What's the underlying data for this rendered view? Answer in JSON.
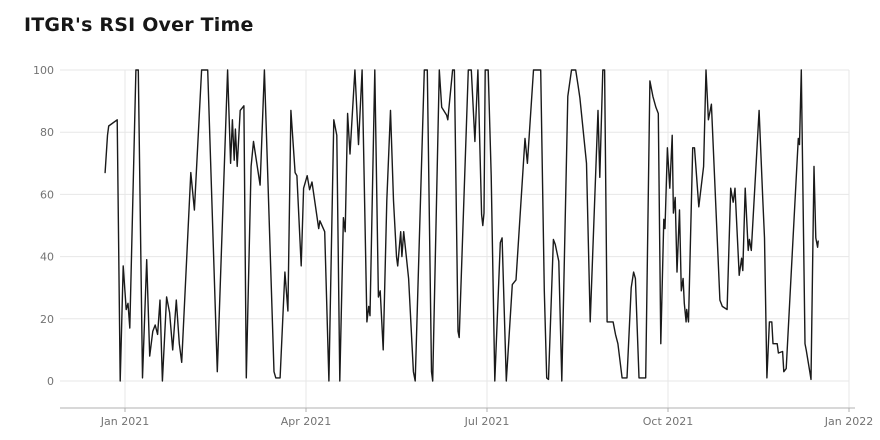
{
  "title": "ITGR's RSI Over Time",
  "chart_data": {
    "type": "line",
    "title": "ITGR's RSI Over Time",
    "series_name": "RSI",
    "x_unit": "months_since_Jan_2021",
    "x_tick_labels": [
      "Jan 2021",
      "Apr 2021",
      "Jul 2021",
      "Oct 2021",
      "Jan 2022"
    ],
    "x_tick_positions_months": [
      0,
      3,
      6,
      9,
      12
    ],
    "y_tick_labels": [
      "0",
      "20",
      "40",
      "60",
      "80",
      "100"
    ],
    "y_ticks": [
      0,
      20,
      40,
      60,
      80,
      100
    ],
    "ylim": [
      0,
      100
    ],
    "xlim_months": [
      -1.08,
      12.05
    ],
    "grid": true,
    "legend": "none",
    "line_color": "#1a1a1a",
    "grid_color": "#e7e7e7",
    "axis_color": "#b0b0b0",
    "label_color": "#737373",
    "points": [
      [
        -0.33,
        67
      ],
      [
        -0.29,
        79
      ],
      [
        -0.27,
        82
      ],
      [
        -0.13,
        84
      ],
      [
        -0.08,
        0
      ],
      [
        -0.03,
        37
      ],
      [
        0.02,
        23
      ],
      [
        0.05,
        25
      ],
      [
        0.08,
        17
      ],
      [
        0.18,
        100
      ],
      [
        0.22,
        100
      ],
      [
        0.29,
        1
      ],
      [
        0.36,
        39
      ],
      [
        0.41,
        8
      ],
      [
        0.46,
        16
      ],
      [
        0.5,
        18
      ],
      [
        0.54,
        15
      ],
      [
        0.58,
        26
      ],
      [
        0.62,
        0
      ],
      [
        0.69,
        27
      ],
      [
        0.74,
        22
      ],
      [
        0.79,
        10
      ],
      [
        0.85,
        26
      ],
      [
        0.9,
        12
      ],
      [
        0.94,
        6
      ],
      [
        1.09,
        67
      ],
      [
        1.15,
        55
      ],
      [
        1.27,
        100
      ],
      [
        1.37,
        100
      ],
      [
        1.53,
        3
      ],
      [
        1.7,
        100
      ],
      [
        1.75,
        70
      ],
      [
        1.78,
        84
      ],
      [
        1.81,
        71
      ],
      [
        1.83,
        81
      ],
      [
        1.86,
        69
      ],
      [
        1.91,
        87
      ],
      [
        1.97,
        88.5
      ],
      [
        2.01,
        1
      ],
      [
        2.09,
        69
      ],
      [
        2.13,
        77
      ],
      [
        2.24,
        63
      ],
      [
        2.31,
        100
      ],
      [
        2.47,
        3
      ],
      [
        2.5,
        1
      ],
      [
        2.57,
        1
      ],
      [
        2.65,
        35
      ],
      [
        2.7,
        22.5
      ],
      [
        2.75,
        87
      ],
      [
        2.82,
        67
      ],
      [
        2.85,
        66
      ],
      [
        2.92,
        37
      ],
      [
        2.96,
        62
      ],
      [
        3.02,
        66
      ],
      [
        3.06,
        61.5
      ],
      [
        3.1,
        64
      ],
      [
        3.21,
        49
      ],
      [
        3.23,
        51.5
      ],
      [
        3.31,
        48
      ],
      [
        3.38,
        0
      ],
      [
        3.46,
        84
      ],
      [
        3.51,
        79
      ],
      [
        3.56,
        0
      ],
      [
        3.62,
        52.5
      ],
      [
        3.65,
        48
      ],
      [
        3.69,
        86
      ],
      [
        3.73,
        73
      ],
      [
        3.81,
        100
      ],
      [
        3.87,
        76
      ],
      [
        3.93,
        100
      ],
      [
        4.01,
        19
      ],
      [
        4.04,
        24
      ],
      [
        4.06,
        21
      ],
      [
        4.14,
        100
      ],
      [
        4.2,
        27
      ],
      [
        4.23,
        29
      ],
      [
        4.28,
        10
      ],
      [
        4.34,
        58
      ],
      [
        4.4,
        87
      ],
      [
        4.45,
        58
      ],
      [
        4.5,
        40
      ],
      [
        4.52,
        37
      ],
      [
        4.57,
        48
      ],
      [
        4.59,
        40
      ],
      [
        4.62,
        48
      ],
      [
        4.7,
        33
      ],
      [
        4.78,
        3
      ],
      [
        4.81,
        0
      ],
      [
        4.96,
        100
      ],
      [
        5.01,
        100
      ],
      [
        5.08,
        3
      ],
      [
        5.1,
        0
      ],
      [
        5.21,
        100
      ],
      [
        5.25,
        88
      ],
      [
        5.33,
        85.5
      ],
      [
        5.35,
        84
      ],
      [
        5.43,
        100
      ],
      [
        5.46,
        100
      ],
      [
        5.52,
        16
      ],
      [
        5.54,
        14
      ],
      [
        5.69,
        100
      ],
      [
        5.74,
        100
      ],
      [
        5.8,
        77
      ],
      [
        5.85,
        100
      ],
      [
        5.91,
        53.5
      ],
      [
        5.93,
        50
      ],
      [
        5.95,
        54
      ],
      [
        5.97,
        100
      ],
      [
        6.02,
        100
      ],
      [
        6.07,
        66
      ],
      [
        6.13,
        0
      ],
      [
        6.22,
        44.5
      ],
      [
        6.25,
        46
      ],
      [
        6.32,
        0
      ],
      [
        6.42,
        31
      ],
      [
        6.48,
        32.5
      ],
      [
        6.63,
        78
      ],
      [
        6.67,
        70
      ],
      [
        6.77,
        100
      ],
      [
        6.89,
        100
      ],
      [
        6.95,
        29
      ],
      [
        6.99,
        1
      ],
      [
        7.02,
        0.5
      ],
      [
        7.1,
        45.5
      ],
      [
        7.13,
        44
      ],
      [
        7.19,
        38.5
      ],
      [
        7.24,
        0
      ],
      [
        7.34,
        91.5
      ],
      [
        7.4,
        100
      ],
      [
        7.47,
        100
      ],
      [
        7.51,
        95
      ],
      [
        7.54,
        91
      ],
      [
        7.65,
        70
      ],
      [
        7.71,
        19
      ],
      [
        7.84,
        87
      ],
      [
        7.87,
        65.5
      ],
      [
        7.92,
        100
      ],
      [
        7.95,
        100
      ],
      [
        7.99,
        19
      ],
      [
        8.09,
        19
      ],
      [
        8.13,
        15
      ],
      [
        8.17,
        12
      ],
      [
        8.24,
        1
      ],
      [
        8.32,
        1
      ],
      [
        8.39,
        30
      ],
      [
        8.43,
        35
      ],
      [
        8.46,
        33
      ],
      [
        8.52,
        1
      ],
      [
        8.63,
        1
      ],
      [
        8.7,
        96.5
      ],
      [
        8.75,
        91.5
      ],
      [
        8.8,
        88
      ],
      [
        8.84,
        86
      ],
      [
        8.88,
        12
      ],
      [
        8.93,
        52
      ],
      [
        8.95,
        49
      ],
      [
        8.99,
        75
      ],
      [
        9.03,
        62
      ],
      [
        9.07,
        79
      ],
      [
        9.09,
        54
      ],
      [
        9.12,
        59
      ],
      [
        9.15,
        35
      ],
      [
        9.19,
        55
      ],
      [
        9.22,
        29
      ],
      [
        9.25,
        33
      ],
      [
        9.27,
        25
      ],
      [
        9.3,
        19
      ],
      [
        9.31,
        23
      ],
      [
        9.34,
        19
      ],
      [
        9.41,
        75
      ],
      [
        9.44,
        75
      ],
      [
        9.51,
        56
      ],
      [
        9.59,
        69
      ],
      [
        9.63,
        100
      ],
      [
        9.67,
        84
      ],
      [
        9.72,
        89
      ],
      [
        9.86,
        26
      ],
      [
        9.9,
        24
      ],
      [
        9.98,
        23
      ],
      [
        10.04,
        62
      ],
      [
        10.08,
        57.5
      ],
      [
        10.11,
        62
      ],
      [
        10.18,
        34
      ],
      [
        10.22,
        39.5
      ],
      [
        10.24,
        35.5
      ],
      [
        10.28,
        62
      ],
      [
        10.33,
        42
      ],
      [
        10.35,
        45.5
      ],
      [
        10.38,
        42
      ],
      [
        10.51,
        87
      ],
      [
        10.57,
        59
      ],
      [
        10.6,
        46
      ],
      [
        10.64,
        1
      ],
      [
        10.68,
        19
      ],
      [
        10.72,
        19
      ],
      [
        10.74,
        12
      ],
      [
        10.81,
        12
      ],
      [
        10.83,
        9
      ],
      [
        10.9,
        9.5
      ],
      [
        10.92,
        3
      ],
      [
        10.96,
        4
      ],
      [
        11.16,
        78
      ],
      [
        11.18,
        76
      ],
      [
        11.21,
        100
      ],
      [
        11.27,
        12
      ],
      [
        11.29,
        10
      ],
      [
        11.35,
        3
      ],
      [
        11.37,
        0.5
      ],
      [
        11.42,
        69
      ],
      [
        11.45,
        46
      ],
      [
        11.48,
        43
      ],
      [
        11.49,
        45
      ]
    ]
  }
}
